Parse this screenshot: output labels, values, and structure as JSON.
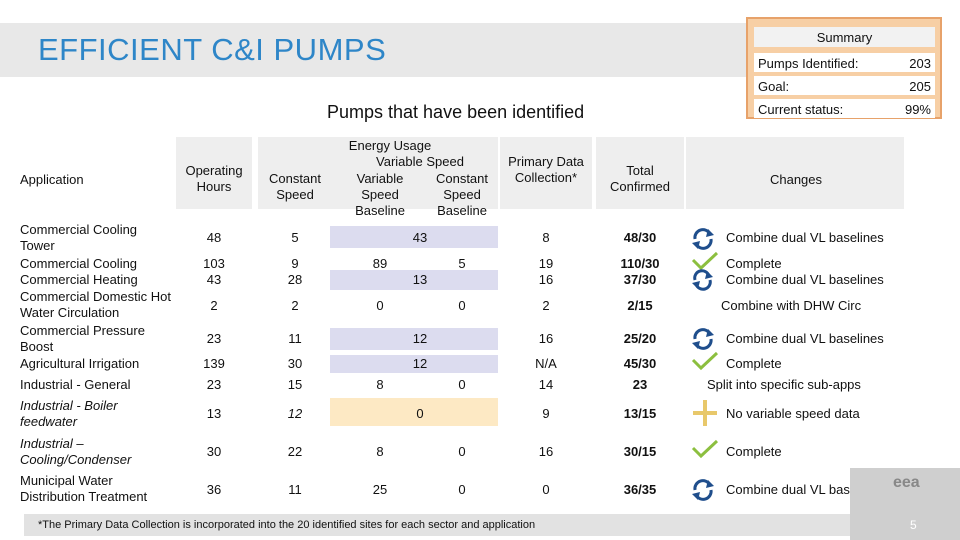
{
  "title": "EFFICIENT C&I PUMPS",
  "subtitle": "Pumps that have been identified",
  "summary": {
    "heading": "Summary",
    "rows": [
      {
        "label": "Pumps Identified:",
        "value": "203"
      },
      {
        "label": "Goal:",
        "value": "205"
      },
      {
        "label": "Current status:",
        "value": "99%"
      }
    ]
  },
  "table": {
    "headers": {
      "application": "Application",
      "operating_hours": "Operating Hours",
      "constant_speed": "Constant Speed",
      "energy_usage": "Energy Usage",
      "variable_speed": "Variable Speed",
      "vs_variable": "Variable Speed Baseline",
      "vs_constant": "Constant Speed Baseline",
      "primary": "Primary Data Collection*",
      "total": "Total Confirmed",
      "changes": "Changes"
    },
    "rows": [
      {
        "app": "Commercial Cooling Tower",
        "hours": "48",
        "constant": "5",
        "merged": "43",
        "primary": "8",
        "total": "48/30",
        "change": "Combine dual VL baselines"
      },
      {
        "app": "Commercial Cooling",
        "hours": "103",
        "constant": "9",
        "vvar": "89",
        "vcon": "5",
        "primary": "19",
        "total": "110/30",
        "change": "Complete"
      },
      {
        "app": "Commercial Heating",
        "hours": "43",
        "constant": "28",
        "merged": "13",
        "primary": "16",
        "total": "37/30",
        "change": "Combine dual VL baselines"
      },
      {
        "app": "Commercial Domestic Hot Water Circulation",
        "hours": "2",
        "constant": "2",
        "vvar": "0",
        "vcon": "0",
        "primary": "2",
        "total": "2/15",
        "change": "Combine with DHW Circ"
      },
      {
        "app": "Commercial Pressure Boost",
        "hours": "23",
        "constant": "11",
        "merged": "12",
        "primary": "16",
        "total": "25/20",
        "change": "Combine dual VL baselines"
      },
      {
        "app": "Agricultural Irrigation",
        "hours": "139",
        "constant": "30",
        "merged": "12",
        "primary": "N/A",
        "total": "45/30",
        "change": "Complete"
      },
      {
        "app": "Industrial - General",
        "hours": "23",
        "constant": "15",
        "vvar": "8",
        "vcon": "0",
        "primary": "14",
        "total": "23",
        "change": "Split into specific sub-apps"
      },
      {
        "app": "Industrial - Boiler feedwater",
        "hours": "13",
        "constant": "12",
        "merged": "0",
        "primary": "9",
        "total": "13/15",
        "change": "No variable speed data"
      },
      {
        "app": "Industrial – Cooling/Condenser",
        "hours": "30",
        "constant": "22",
        "vvar": "8",
        "vcon": "0",
        "primary": "16",
        "total": "30/15",
        "change": "Complete"
      },
      {
        "app": "Municipal Water Distribution Treatment",
        "hours": "36",
        "constant": "11",
        "vvar": "25",
        "vcon": "0",
        "primary": "0",
        "total": "36/35",
        "change": "Combine dual VL baselines"
      }
    ]
  },
  "footnote": "*The Primary Data Collection is incorporated into the 20 identified sites for each sector and application",
  "page_number": "5",
  "logo_text": "eea",
  "colors": {
    "accent": "#2e86c8",
    "summary_bg": "#f7cfa5",
    "summary_border": "#e7a26a",
    "check": "#8cbf3f",
    "cycle": "#1f4e8c"
  }
}
